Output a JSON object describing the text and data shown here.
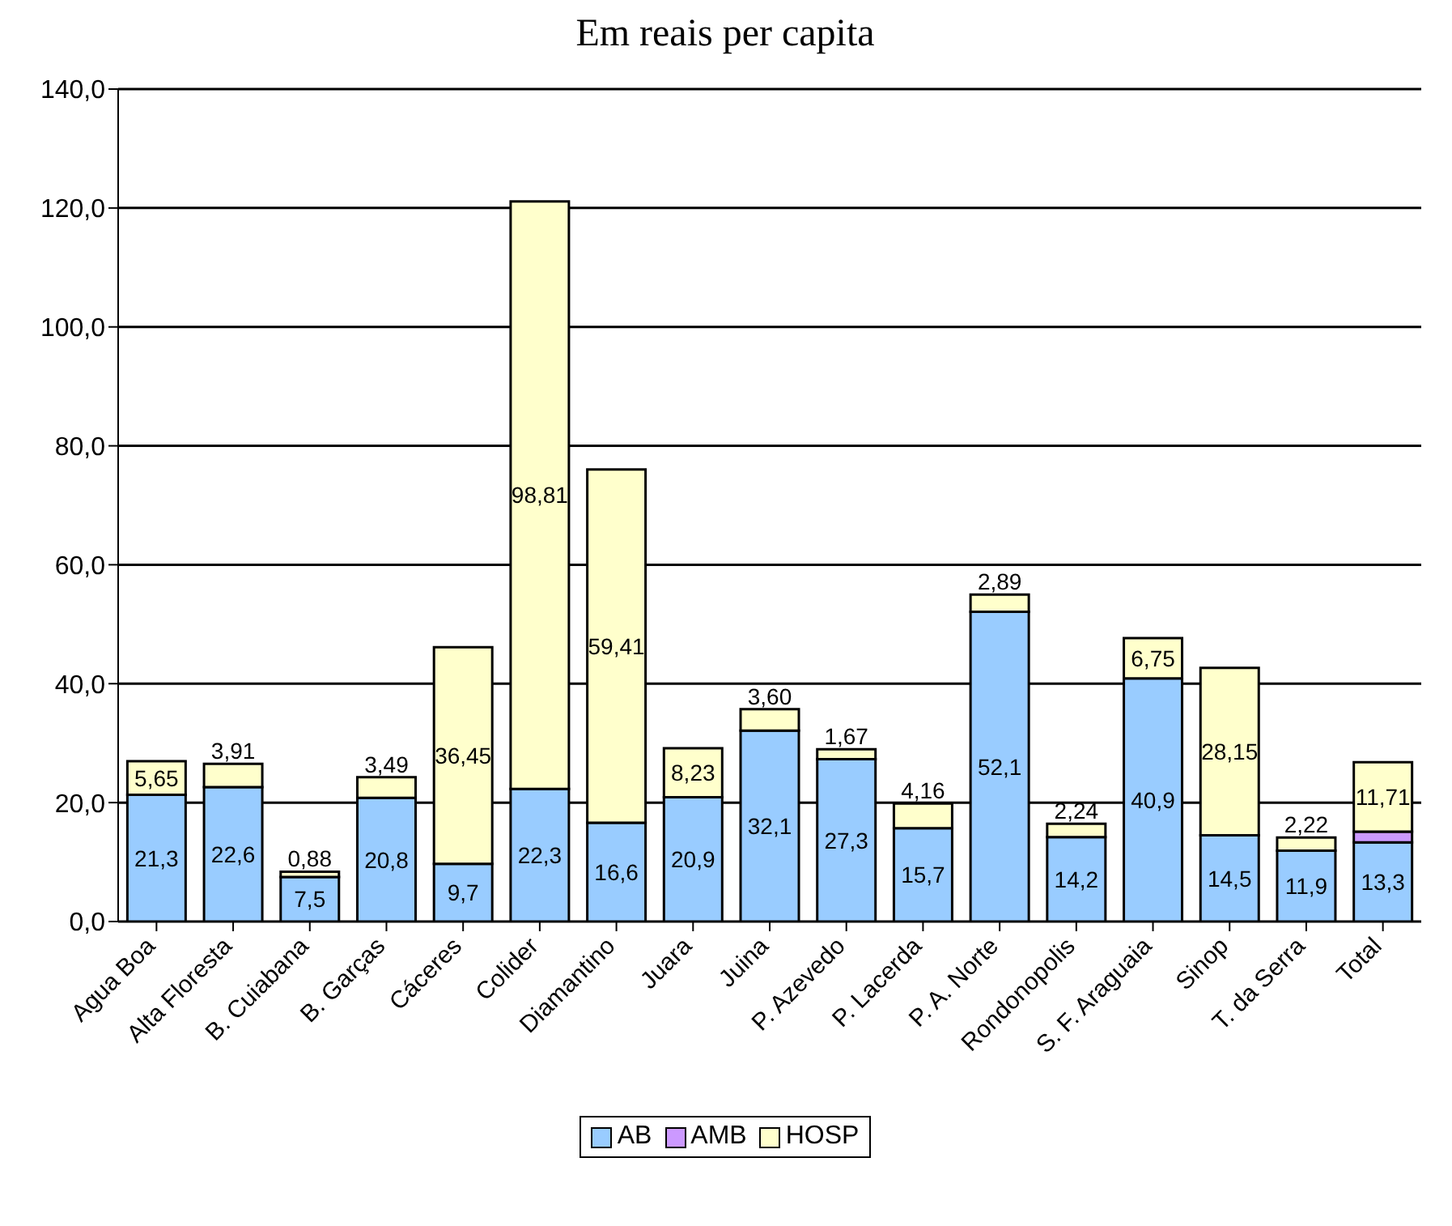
{
  "chart_data": {
    "type": "bar",
    "title": "Em reais per capita",
    "stacked": true,
    "categories": [
      "Agua Boa",
      "Alta Floresta",
      "B. Cuiabana",
      "B. Garças",
      "Cáceres",
      "Colider",
      "Diamantino",
      "Juara",
      "Juina",
      "P. Azevedo",
      "P. Lacerda",
      "P. A. Norte",
      "Rondonopolis",
      "S. F. Araguaia",
      "Sinop",
      "T. da Serra",
      "Total"
    ],
    "series": [
      {
        "name": "AB",
        "color": "#99ccff",
        "values": [
          21.3,
          22.6,
          7.5,
          20.8,
          9.7,
          22.3,
          16.6,
          20.9,
          32.1,
          27.3,
          15.7,
          52.1,
          14.2,
          40.9,
          14.5,
          11.9,
          13.3
        ],
        "value_labels": [
          "21,3",
          "22,6",
          "7,5",
          "20,8",
          "9,7",
          "22,3",
          "16,6",
          "20,9",
          "32,1",
          "27,3",
          "15,7",
          "52,1",
          "14,2",
          "40,9",
          "14,5",
          "11,9",
          "13,3"
        ]
      },
      {
        "name": "AMB",
        "color": "#cc99ff",
        "values": [
          0,
          0,
          0,
          0,
          0,
          0,
          0,
          0,
          0,
          0,
          0,
          0,
          0,
          0,
          0,
          0,
          1.8
        ]
      },
      {
        "name": "HOSP",
        "color": "#ffffcc",
        "values": [
          5.65,
          3.91,
          0.88,
          3.49,
          36.45,
          98.81,
          59.41,
          8.23,
          3.6,
          1.67,
          4.16,
          2.89,
          2.24,
          6.75,
          28.15,
          2.22,
          11.71
        ],
        "value_labels": [
          "5,65",
          "3,91",
          "0,88",
          "3,49",
          "36,45",
          "98,81",
          "59,41",
          "8,23",
          "3,60",
          "1,67",
          "4,16",
          "2,89",
          "2,24",
          "6,75",
          "28,15",
          "2,22",
          "11,71"
        ]
      }
    ],
    "ylim": [
      0,
      140
    ],
    "yticks": [
      {
        "value": 0,
        "label": "0,0"
      },
      {
        "value": 20,
        "label": "20,0"
      },
      {
        "value": 40,
        "label": "40,0"
      },
      {
        "value": 60,
        "label": "60,0"
      },
      {
        "value": 80,
        "label": "80,0"
      },
      {
        "value": 100,
        "label": "100,0"
      },
      {
        "value": 120,
        "label": "120,0"
      },
      {
        "value": 140,
        "label": "140,0"
      }
    ],
    "grid": "y",
    "legend": "bottom"
  }
}
